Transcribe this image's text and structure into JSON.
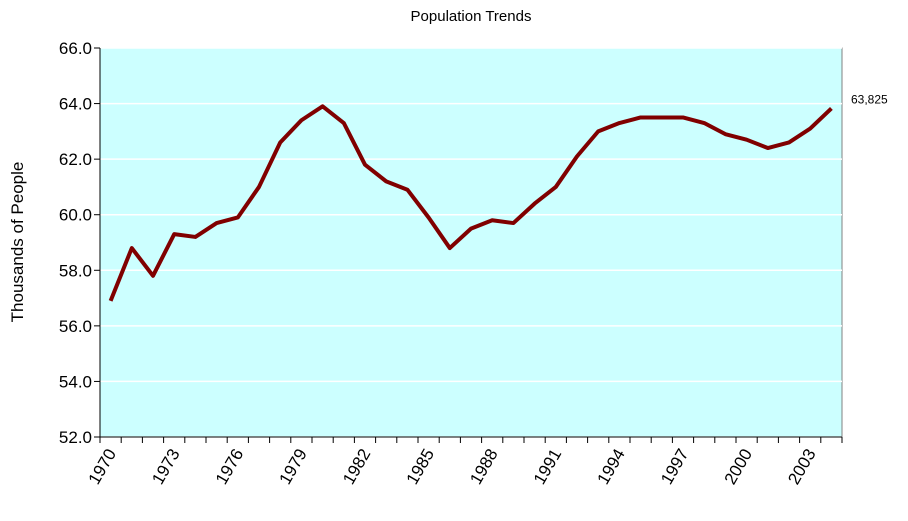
{
  "chart_data": {
    "type": "line",
    "title": "Population Trends",
    "y_label": "Thousands of People",
    "categories": [
      "1970",
      null,
      null,
      "1973",
      null,
      null,
      "1976",
      null,
      null,
      "1979",
      null,
      null,
      "1982",
      null,
      null,
      "1985",
      null,
      null,
      "1988",
      null,
      null,
      "1991",
      null,
      null,
      "1994",
      null,
      null,
      "1997",
      null,
      null,
      "2000",
      null,
      null,
      "2003",
      null
    ],
    "values": [
      56.9,
      58.8,
      57.8,
      59.3,
      59.2,
      59.7,
      59.9,
      61.0,
      62.6,
      63.4,
      63.9,
      63.3,
      61.8,
      61.2,
      60.9,
      59.9,
      58.8,
      59.5,
      59.8,
      59.7,
      60.4,
      61.0,
      62.1,
      63.0,
      63.3,
      63.5,
      63.5,
      63.5,
      63.3,
      62.9,
      62.7,
      62.4,
      62.6,
      63.1,
      63.825
    ],
    "value_labels": [
      null,
      null,
      null,
      null,
      null,
      null,
      null,
      null,
      null,
      null,
      null,
      null,
      null,
      null,
      null,
      null,
      null,
      null,
      null,
      null,
      null,
      null,
      null,
      null,
      null,
      null,
      null,
      null,
      null,
      null,
      null,
      null,
      null,
      null,
      "63,825"
    ],
    "color": "#800000",
    "background": "#ccffff",
    "grid": true,
    "ylim": [
      52,
      66
    ],
    "yticks": [
      {
        "value": 52,
        "label": "52.0"
      },
      {
        "value": 54,
        "label": "54.0"
      },
      {
        "value": 56,
        "label": "56.0"
      },
      {
        "value": 58,
        "label": "58.0"
      },
      {
        "value": 60,
        "label": "60.0"
      },
      {
        "value": 62,
        "label": "62.0"
      },
      {
        "value": 64,
        "label": "64.0"
      },
      {
        "value": 66,
        "label": "66.0"
      }
    ]
  }
}
